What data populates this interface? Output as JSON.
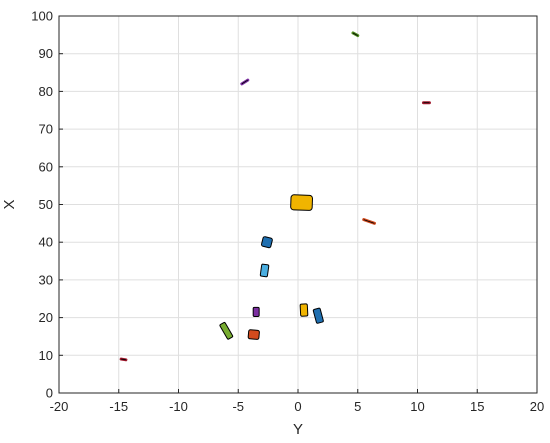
{
  "chart_data": {
    "type": "scatter",
    "title": "",
    "xlabel": "Y",
    "ylabel": "X",
    "xlim": [
      -20,
      20
    ],
    "ylim": [
      0,
      100
    ],
    "xticks": [
      "-20",
      "-15",
      "-10",
      "-5",
      "0",
      "5",
      "10",
      "15",
      "20"
    ],
    "yticks": [
      "0",
      "10",
      "20",
      "30",
      "40",
      "50",
      "60",
      "70",
      "80",
      "90",
      "100"
    ],
    "grid": true,
    "objects": [
      {
        "shape": "segment",
        "y": [
          4.6,
          5.0
        ],
        "x": [
          95.5,
          94.8
        ],
        "color": "#4d8a1f"
      },
      {
        "shape": "segment",
        "y": [
          -4.7,
          -4.2
        ],
        "x": [
          82.0,
          83.0
        ],
        "color": "#7b2fa0"
      },
      {
        "shape": "segment",
        "y": [
          10.5,
          11.0
        ],
        "x": [
          77.0,
          77.0
        ],
        "color": "#a0192d"
      },
      {
        "shape": "box",
        "y": 0.3,
        "x": 50.5,
        "width": 1.8,
        "length": 4.0,
        "angle": 2,
        "color": "#f0b400"
      },
      {
        "shape": "segment",
        "y": [
          5.5,
          6.4
        ],
        "x": [
          46.0,
          45.0
        ],
        "color": "#d24b1e"
      },
      {
        "shape": "box",
        "y": -2.6,
        "x": 40.0,
        "width": 0.8,
        "length": 2.6,
        "angle": 14,
        "color": "#1f6fb0"
      },
      {
        "shape": "box",
        "y": -2.8,
        "x": 32.5,
        "width": 0.6,
        "length": 3.2,
        "angle": 8,
        "color": "#4aaee0"
      },
      {
        "shape": "box",
        "y": 0.5,
        "x": 22.0,
        "width": 0.6,
        "length": 3.2,
        "angle": -3,
        "color": "#f0b400"
      },
      {
        "shape": "box",
        "y": 1.7,
        "x": 20.5,
        "width": 0.6,
        "length": 3.8,
        "angle": -15,
        "color": "#1f6fb0"
      },
      {
        "shape": "box",
        "y": -3.5,
        "x": 21.5,
        "width": 0.5,
        "length": 2.4,
        "angle": 0,
        "color": "#7b2fa0"
      },
      {
        "shape": "box",
        "y": -6.0,
        "x": 16.5,
        "width": 1.4,
        "length": 1.6,
        "angle": 60,
        "color": "#77ac30"
      },
      {
        "shape": "box",
        "y": -3.7,
        "x": 15.5,
        "width": 0.9,
        "length": 2.4,
        "angle": 5,
        "color": "#d24b1e"
      },
      {
        "shape": "segment",
        "y": [
          -14.8,
          -14.4
        ],
        "x": [
          9.0,
          8.8
        ],
        "color": "#a0192d"
      }
    ]
  }
}
